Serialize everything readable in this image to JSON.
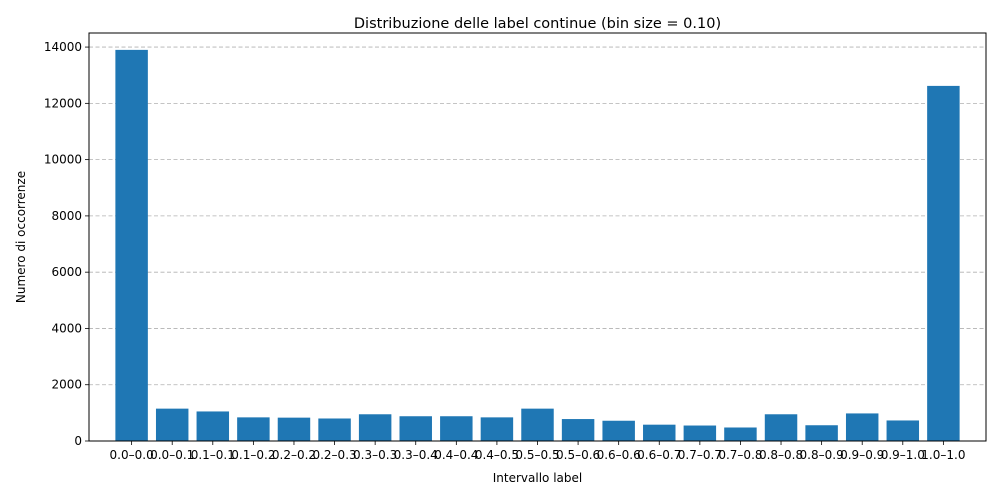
{
  "chart_data": {
    "type": "bar",
    "title": "Distribuzione delle label continue (bin size = 0.10)",
    "xlabel": "Intervallo label",
    "ylabel": "Numero di occorrenze",
    "categories": [
      "0.0–0.0",
      "0.0–0.1",
      "0.1–0.1",
      "0.1–0.2",
      "0.2–0.2",
      "0.2–0.3",
      "0.3–0.3",
      "0.3–0.4",
      "0.4–0.4",
      "0.4–0.5",
      "0.5–0.5",
      "0.5–0.6",
      "0.6–0.6",
      "0.6–0.7",
      "0.7–0.7",
      "0.7–0.8",
      "0.8–0.8",
      "0.8–0.9",
      "0.9–0.9",
      "0.9–1.0",
      "1.0–1.0"
    ],
    "values": [
      13900,
      1150,
      1050,
      840,
      830,
      800,
      950,
      880,
      880,
      840,
      1150,
      780,
      720,
      580,
      550,
      480,
      950,
      560,
      980,
      730,
      12620
    ],
    "ylim": [
      0,
      14500
    ],
    "yticks": [
      0,
      2000,
      4000,
      6000,
      8000,
      10000,
      12000,
      14000
    ],
    "grid": "y-dashed",
    "legend": "none",
    "bar_color": "#1f77b4"
  }
}
